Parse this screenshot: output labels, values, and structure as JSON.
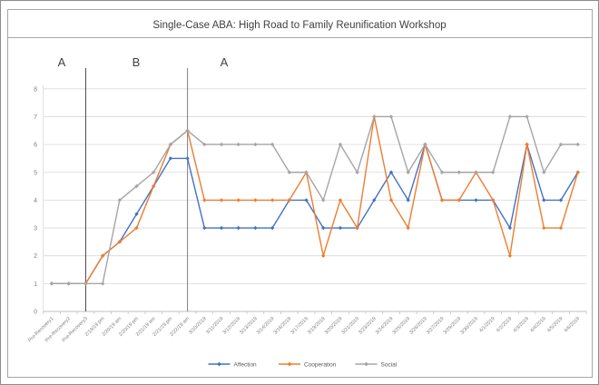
{
  "title": "Single-Case ABA: High Road to Family Reunification Workshop",
  "phases": [
    {
      "label": "A"
    },
    {
      "label": "B"
    },
    {
      "label": "A"
    }
  ],
  "phase_boundaries": [
    {
      "at_index": 2,
      "color": "#404040"
    },
    {
      "at_index": 8,
      "color": "#808080"
    }
  ],
  "chart_data": {
    "type": "line",
    "categories": [
      "Pre-Recovery1",
      "Pre-Recovery2",
      "Pre-Recovery3",
      "2/19/19 pm",
      "2/20/19 am",
      "2/20/19 pm",
      "2/21/19 am",
      "2/21/19 pm",
      "2/22/19 am",
      "3/10/2019",
      "3/11/2019",
      "3/12/2019",
      "3/13/2019",
      "3/14/2019",
      "3/16/2019",
      "3/17/2019",
      "3/19/2019",
      "3/20/2019",
      "3/21/2019",
      "3/23/2019",
      "3/24/2019",
      "3/25/2019",
      "3/26/2019",
      "3/27/2019",
      "3/29/2019",
      "3/30/2019",
      "4/1/2019",
      "4/2/2019",
      "4/3/2019",
      "4/4/2019",
      "4/5/2019",
      "4/6/2019"
    ],
    "series": [
      {
        "name": "Affection",
        "color": "#4472C4",
        "values": [
          1,
          1,
          1,
          2,
          2.5,
          3.5,
          4.5,
          5.5,
          5.5,
          3,
          3,
          3,
          3,
          3,
          4,
          4,
          3,
          3,
          3,
          4,
          5,
          4,
          6,
          4,
          4,
          4,
          4,
          3,
          6,
          4,
          4,
          5
        ]
      },
      {
        "name": "Cooperation",
        "color": "#ED7D31",
        "values": [
          1,
          1,
          1,
          2,
          2.5,
          3,
          4.5,
          6,
          6.5,
          4,
          4,
          4,
          4,
          4,
          4,
          5,
          2,
          4,
          3,
          7,
          4,
          3,
          6,
          4,
          4,
          5,
          4,
          2,
          6,
          3,
          3,
          5
        ]
      },
      {
        "name": "Social",
        "color": "#A5A5A5",
        "values": [
          1,
          1,
          1,
          1,
          4,
          4.5,
          5,
          6,
          6.5,
          6,
          6,
          6,
          6,
          6,
          5,
          5,
          4,
          6,
          5,
          7,
          7,
          5,
          6,
          5,
          5,
          5,
          5,
          7,
          7,
          5,
          6,
          6
        ]
      }
    ],
    "ylim": [
      0,
      8
    ],
    "yticks": [
      0,
      1,
      2,
      3,
      4,
      5,
      6,
      7,
      8
    ],
    "grid": true,
    "legend_position": "bottom",
    "marker": "diamond"
  },
  "style_colors": {
    "grid": "#D9D9D9",
    "axis": "#BFBFBF",
    "border": "#A6A6A6",
    "outer_border": "#8C8C8C",
    "tick_label": "#7f7f7f"
  }
}
